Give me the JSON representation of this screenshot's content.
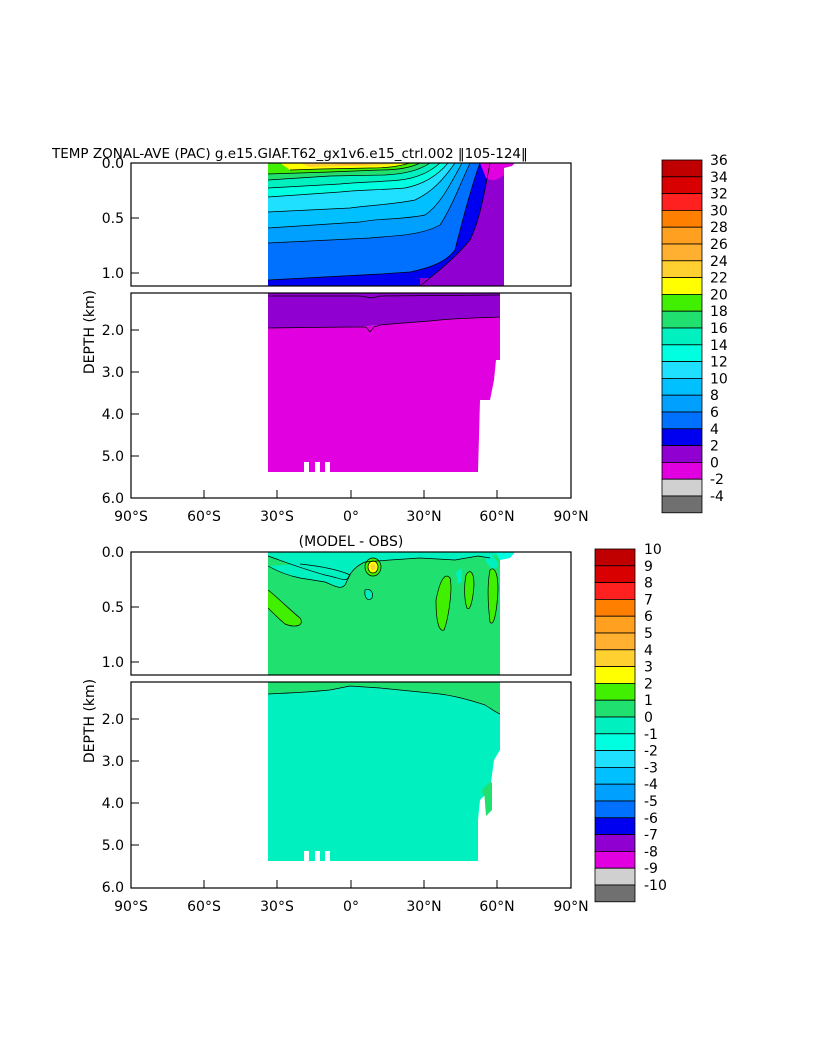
{
  "title": "TEMP ZONAL-AVE (PAC) g.e15.GIAF.T62_gx1v6.e15_ctrl.002 ‖105-124‖",
  "chart_data": [
    {
      "type": "heatmap",
      "title": "TEMP ZONAL-AVE (PAC) g.e15.GIAF.T62_gx1v6.e15_ctrl.002 ‖105-124‖",
      "xlabel": "",
      "ylabel": "DEPTH (km)",
      "x_ticks": [
        "90°S",
        "60°S",
        "30°S",
        "0°",
        "30°N",
        "60°N",
        "90°N"
      ],
      "y_ticks_upper": [
        "0.0",
        "0.5",
        "1.0"
      ],
      "y_ticks_lower": [
        "2.0",
        "3.0",
        "4.0",
        "5.0",
        "6.0"
      ],
      "xlim": [
        -90,
        90
      ],
      "ylim": [
        6.0,
        0.0
      ],
      "colorbar": {
        "labels": [
          "36",
          "34",
          "32",
          "30",
          "28",
          "26",
          "24",
          "22",
          "20",
          "18",
          "16",
          "14",
          "12",
          "10",
          "8",
          "6",
          "4",
          "2",
          "0",
          "-2",
          "-4"
        ],
        "colors": [
          "#c00000",
          "#d80000",
          "#ff2020",
          "#ff8000",
          "#ffa020",
          "#ffb030",
          "#ffd030",
          "#ffff00",
          "#40f000",
          "#20e070",
          "#00f0c0",
          "#00ffe0",
          "#20e0ff",
          "#00c0ff",
          "#00a0ff",
          "#0070ff",
          "#0000f0",
          "#9000d0",
          "#e000e0",
          "#d0d0d0",
          "#707070"
        ]
      },
      "data": [
        {
          "lat_range": [
            -35,
            62
          ],
          "depth_range": [
            0.0,
            0.05
          ],
          "value": "22-28",
          "note": "warm surface core near equator"
        },
        {
          "lat_range": [
            -35,
            55
          ],
          "depth_range": [
            0.05,
            0.6
          ],
          "value": "8-20"
        },
        {
          "lat_range": [
            -35,
            45
          ],
          "depth_range": [
            0.6,
            1.1
          ],
          "value": "4-6"
        },
        {
          "lat_range": [
            45,
            62
          ],
          "depth_range": [
            0.3,
            1.1
          ],
          "value": "2-4"
        },
        {
          "lat_range": [
            -35,
            62
          ],
          "depth_range": [
            1.1,
            2.0
          ],
          "value": "2-4"
        },
        {
          "lat_range": [
            -35,
            60
          ],
          "depth_range": [
            2.0,
            5.4
          ],
          "value": "0-2"
        }
      ]
    },
    {
      "type": "heatmap",
      "title": "(MODEL - OBS)",
      "xlabel": "",
      "ylabel": "DEPTH (km)",
      "x_ticks": [
        "90°S",
        "60°S",
        "30°S",
        "0°",
        "30°N",
        "60°N",
        "90°N"
      ],
      "y_ticks_upper": [
        "0.0",
        "0.5",
        "1.0"
      ],
      "y_ticks_lower": [
        "2.0",
        "3.0",
        "4.0",
        "5.0",
        "6.0"
      ],
      "xlim": [
        -90,
        90
      ],
      "ylim": [
        6.0,
        0.0
      ],
      "colorbar": {
        "labels": [
          "10",
          "9",
          "8",
          "7",
          "6",
          "5",
          "4",
          "3",
          "2",
          "1",
          "0",
          "-1",
          "-2",
          "-3",
          "-4",
          "-5",
          "-6",
          "-7",
          "-8",
          "-9",
          "-10"
        ],
        "colors": [
          "#c00000",
          "#d80000",
          "#ff2020",
          "#ff8000",
          "#ffa020",
          "#ffb030",
          "#ffd030",
          "#ffff00",
          "#40f000",
          "#20e070",
          "#00f0c0",
          "#00ffe0",
          "#20e0ff",
          "#00c0ff",
          "#00a0ff",
          "#0070ff",
          "#0000f0",
          "#9000d0",
          "#e000e0",
          "#d0d0d0",
          "#707070"
        ]
      },
      "data": [
        {
          "lat_range": [
            -35,
            62
          ],
          "depth_range": [
            0.0,
            1.4
          ],
          "value": "0-1"
        },
        {
          "lat_range": [
            -35,
            62
          ],
          "depth_range": [
            1.4,
            5.4
          ],
          "value": "-1-0"
        },
        {
          "lat_range": [
            8,
            12
          ],
          "depth_range": [
            0.1,
            0.2
          ],
          "value": "2-3",
          "note": "small warm anomaly"
        }
      ]
    }
  ]
}
